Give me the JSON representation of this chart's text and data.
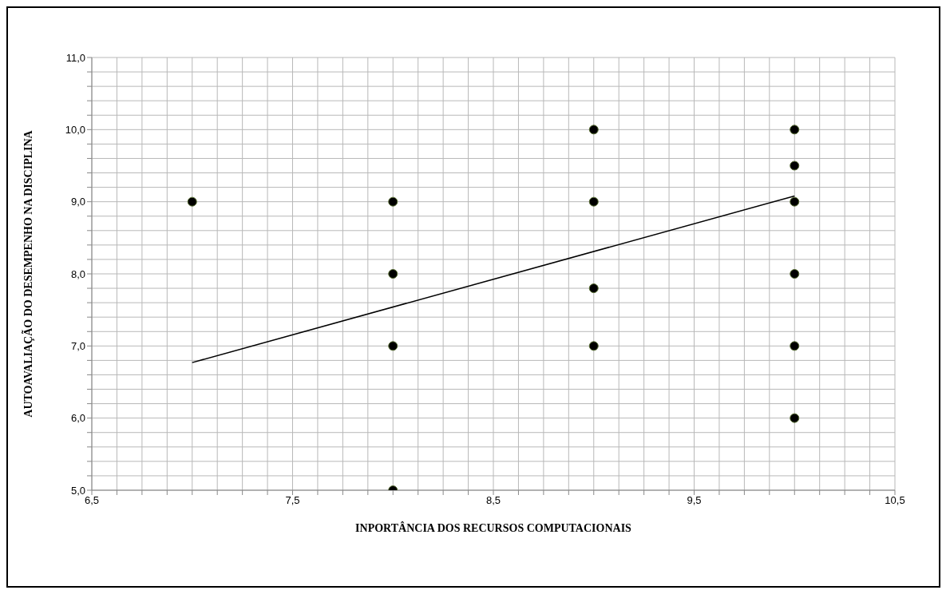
{
  "chart_data": {
    "type": "scatter",
    "xlabel": "INPORTÂNCIA DOS RECURSOS COMPUTACIONAIS",
    "ylabel": "AUTOAVALIAÇÃO DO DESEMPENHO NA DISCIPLINA",
    "xlim": [
      6.5,
      10.5
    ],
    "xticks": [
      {
        "value": 6.5,
        "label": "6,5"
      },
      {
        "value": 6.625,
        "label": null
      },
      {
        "value": 6.75,
        "label": null
      },
      {
        "value": 6.875,
        "label": null
      },
      {
        "value": 7,
        "label": null
      },
      {
        "value": 7.125,
        "label": null
      },
      {
        "value": 7.25,
        "label": null
      },
      {
        "value": 7.375,
        "label": null
      },
      {
        "value": 7.5,
        "label": "7,5"
      },
      {
        "value": 7.625,
        "label": null
      },
      {
        "value": 7.75,
        "label": null
      },
      {
        "value": 7.875,
        "label": null
      },
      {
        "value": 8,
        "label": null
      },
      {
        "value": 8.125,
        "label": null
      },
      {
        "value": 8.25,
        "label": null
      },
      {
        "value": 8.375,
        "label": null
      },
      {
        "value": 8.5,
        "label": "8,5"
      },
      {
        "value": 8.625,
        "label": null
      },
      {
        "value": 8.75,
        "label": null
      },
      {
        "value": 8.875,
        "label": null
      },
      {
        "value": 9,
        "label": null
      },
      {
        "value": 9.125,
        "label": null
      },
      {
        "value": 9.25,
        "label": null
      },
      {
        "value": 9.375,
        "label": null
      },
      {
        "value": 9.5,
        "label": "9,5"
      },
      {
        "value": 9.625,
        "label": null
      },
      {
        "value": 9.75,
        "label": null
      },
      {
        "value": 9.875,
        "label": null
      },
      {
        "value": 10,
        "label": null
      },
      {
        "value": 10.125,
        "label": null
      },
      {
        "value": 10.25,
        "label": null
      },
      {
        "value": 10.375,
        "label": null
      },
      {
        "value": 10.5,
        "label": "10,5"
      }
    ],
    "ylim": [
      5,
      11
    ],
    "yticks": [
      {
        "value": 5,
        "label": "5,0"
      },
      {
        "value": 5.2,
        "label": null
      },
      {
        "value": 5.4,
        "label": null
      },
      {
        "value": 5.6,
        "label": null
      },
      {
        "value": 5.8,
        "label": null
      },
      {
        "value": 6,
        "label": "6,0"
      },
      {
        "value": 6.2,
        "label": null
      },
      {
        "value": 6.4,
        "label": null
      },
      {
        "value": 6.6,
        "label": null
      },
      {
        "value": 6.8,
        "label": null
      },
      {
        "value": 7,
        "label": "7,0"
      },
      {
        "value": 7.2,
        "label": null
      },
      {
        "value": 7.4,
        "label": null
      },
      {
        "value": 7.6,
        "label": null
      },
      {
        "value": 7.8,
        "label": null
      },
      {
        "value": 8,
        "label": "8,0"
      },
      {
        "value": 8.2,
        "label": null
      },
      {
        "value": 8.4,
        "label": null
      },
      {
        "value": 8.6,
        "label": null
      },
      {
        "value": 8.8,
        "label": null
      },
      {
        "value": 9,
        "label": "9,0"
      },
      {
        "value": 9.2,
        "label": null
      },
      {
        "value": 9.4,
        "label": null
      },
      {
        "value": 9.6,
        "label": null
      },
      {
        "value": 9.8,
        "label": null
      },
      {
        "value": 10,
        "label": "10,0"
      },
      {
        "value": 10.2,
        "label": null
      },
      {
        "value": 10.4,
        "label": null
      },
      {
        "value": 10.6,
        "label": null
      },
      {
        "value": 10.8,
        "label": null
      },
      {
        "value": 11,
        "label": "11,0"
      }
    ],
    "grid": true,
    "marker": "circle",
    "series": [
      {
        "color": "#000000",
        "x": [
          7,
          8,
          8,
          8,
          8,
          9,
          9,
          9,
          9,
          10,
          10,
          10,
          10,
          10,
          10
        ],
        "values": [
          9,
          9,
          8,
          7,
          5,
          10,
          9,
          7.8,
          7,
          10,
          9.5,
          9,
          8,
          7,
          6
        ]
      },
      {
        "type": "line",
        "marker": "none",
        "color": "#000000",
        "x": [
          7,
          10
        ],
        "values": [
          6.77,
          9.08
        ]
      }
    ]
  }
}
